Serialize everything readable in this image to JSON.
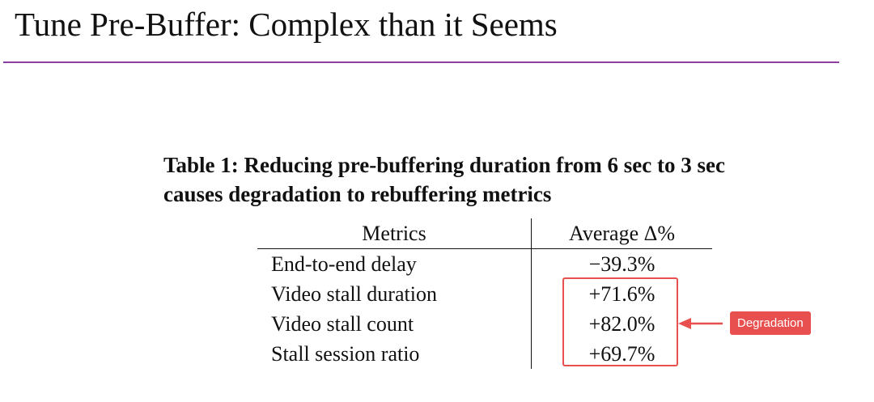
{
  "slide": {
    "title": "Tune Pre-Buffer: Complex than it Seems"
  },
  "table": {
    "caption_line1": "Table 1: Reducing pre-buffering duration from 6 sec to 3 sec",
    "caption_line2": "causes degradation to rebuffering metrics",
    "headers": [
      "Metrics",
      "Average Δ%"
    ],
    "rows": [
      {
        "metric": "End-to-end delay",
        "delta": "−39.3%"
      },
      {
        "metric": "Video stall duration",
        "delta": "+71.6%"
      },
      {
        "metric": "Video stall count",
        "delta": "+82.0%"
      },
      {
        "metric": "Stall session ratio",
        "delta": "+69.7%"
      }
    ]
  },
  "annotation": {
    "label": "Degradation",
    "color": "#e8504f",
    "arrow_icon": "arrow-left-icon"
  },
  "colors": {
    "title_rule": "#8b3fa0"
  }
}
